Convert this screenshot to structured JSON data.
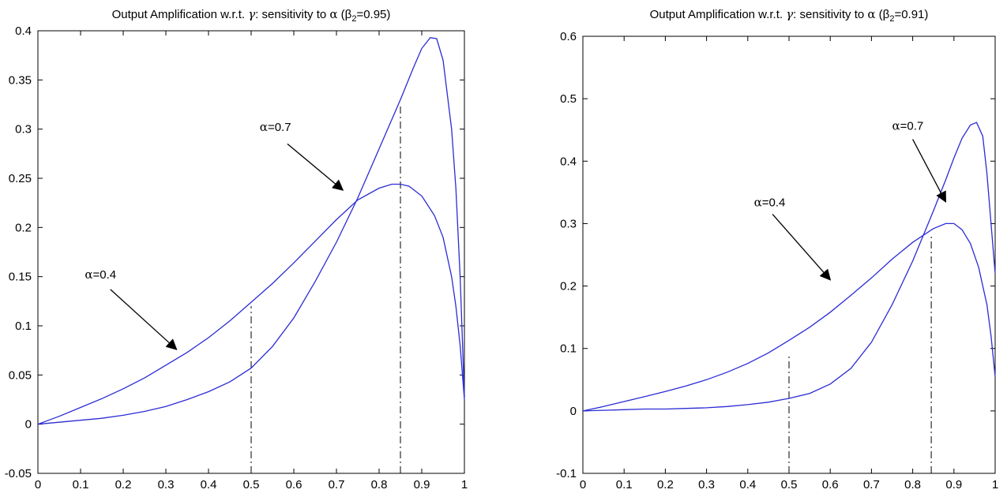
{
  "chart_data": [
    {
      "type": "line",
      "title": {
        "prefix": "Output Amplification w.r.t. ",
        "gamma": "γ",
        "mid": ": sensitivity to ",
        "alpha": "α",
        "beta_open": " (β",
        "beta_sub": "2",
        "beta_close": "=0.95)"
      },
      "xlabel": "",
      "ylabel": "",
      "xlim": [
        0,
        1
      ],
      "ylim": [
        -0.05,
        0.4
      ],
      "x_ticks": [
        "0",
        "0.1",
        "0.2",
        "0.3",
        "0.4",
        "0.5",
        "0.6",
        "0.7",
        "0.8",
        "0.9",
        "1"
      ],
      "y_ticks": [
        "-0.05",
        "0",
        "0.05",
        "0.1",
        "0.15",
        "0.2",
        "0.25",
        "0.3",
        "0.35",
        "0.4"
      ],
      "grid": false,
      "line_color": "#2b2bd6",
      "series": [
        {
          "name": "α=0.4",
          "x": [
            0,
            0.05,
            0.1,
            0.15,
            0.2,
            0.25,
            0.3,
            0.35,
            0.4,
            0.45,
            0.5,
            0.55,
            0.6,
            0.65,
            0.7,
            0.75,
            0.8,
            0.83,
            0.85,
            0.87,
            0.9,
            0.93,
            0.95,
            0.97,
            0.98,
            0.99,
            1.0
          ],
          "y": [
            0,
            0.008,
            0.017,
            0.026,
            0.036,
            0.047,
            0.06,
            0.073,
            0.088,
            0.105,
            0.124,
            0.143,
            0.164,
            0.186,
            0.208,
            0.228,
            0.24,
            0.244,
            0.244,
            0.242,
            0.232,
            0.212,
            0.19,
            0.15,
            0.12,
            0.08,
            0.025
          ]
        },
        {
          "name": "α=0.7",
          "x": [
            0,
            0.05,
            0.1,
            0.15,
            0.2,
            0.25,
            0.3,
            0.35,
            0.4,
            0.45,
            0.5,
            0.55,
            0.6,
            0.65,
            0.7,
            0.75,
            0.8,
            0.85,
            0.88,
            0.9,
            0.92,
            0.935,
            0.95,
            0.97,
            0.98,
            0.99,
            1.0
          ],
          "y": [
            0,
            0.002,
            0.004,
            0.006,
            0.009,
            0.013,
            0.018,
            0.025,
            0.033,
            0.043,
            0.057,
            0.079,
            0.108,
            0.145,
            0.185,
            0.23,
            0.28,
            0.33,
            0.362,
            0.382,
            0.393,
            0.392,
            0.37,
            0.3,
            0.24,
            0.15,
            0.028
          ]
        }
      ],
      "vlines": [
        {
          "x": 0.5,
          "y_top": 0.12
        },
        {
          "x": 0.85,
          "y_top": 0.325
        }
      ],
      "annotations": [
        {
          "label_alpha": "α",
          "label_value": "=0.7",
          "text_x": 0.52,
          "text_y": 0.298,
          "arrow_from": [
            0.585,
            0.285
          ],
          "arrow_to": [
            0.715,
            0.238
          ]
        },
        {
          "label_alpha": "α",
          "label_value": "=0.4",
          "text_x": 0.11,
          "text_y": 0.148,
          "arrow_from": [
            0.17,
            0.137
          ],
          "arrow_to": [
            0.325,
            0.076
          ]
        }
      ]
    },
    {
      "type": "line",
      "title": {
        "prefix": "Output Amplification w.r.t. ",
        "gamma": "γ",
        "mid": ": sensitivity to ",
        "alpha": "α",
        "beta_open": " (β",
        "beta_sub": "2",
        "beta_close": "=0.91)"
      },
      "xlabel": "",
      "ylabel": "",
      "xlim": [
        0,
        1
      ],
      "ylim": [
        -0.1,
        0.6
      ],
      "x_ticks": [
        "0",
        "0.1",
        "0.2",
        "0.3",
        "0.4",
        "0.5",
        "0.6",
        "0.7",
        "0.8",
        "0.9",
        "1"
      ],
      "y_ticks": [
        "-0.1",
        "0",
        "0.1",
        "0.2",
        "0.3",
        "0.4",
        "0.5",
        "0.6"
      ],
      "grid": false,
      "line_color": "#2b2bd6",
      "series": [
        {
          "name": "α=0.4",
          "x": [
            0,
            0.05,
            0.1,
            0.15,
            0.2,
            0.25,
            0.3,
            0.35,
            0.4,
            0.45,
            0.5,
            0.55,
            0.6,
            0.65,
            0.7,
            0.75,
            0.8,
            0.85,
            0.88,
            0.9,
            0.92,
            0.94,
            0.96,
            0.98,
            0.99,
            1.0
          ],
          "y": [
            0,
            0.007,
            0.015,
            0.023,
            0.031,
            0.04,
            0.05,
            0.062,
            0.076,
            0.093,
            0.113,
            0.134,
            0.158,
            0.185,
            0.213,
            0.243,
            0.27,
            0.292,
            0.3,
            0.3,
            0.29,
            0.268,
            0.23,
            0.17,
            0.12,
            0.055
          ]
        },
        {
          "name": "α=0.7",
          "x": [
            0,
            0.05,
            0.1,
            0.15,
            0.2,
            0.25,
            0.3,
            0.35,
            0.4,
            0.45,
            0.5,
            0.55,
            0.6,
            0.65,
            0.7,
            0.75,
            0.8,
            0.85,
            0.88,
            0.9,
            0.92,
            0.94,
            0.955,
            0.97,
            0.98,
            0.99,
            1.0
          ],
          "y": [
            0,
            0.001,
            0.002,
            0.003,
            0.003,
            0.004,
            0.005,
            0.007,
            0.01,
            0.014,
            0.02,
            0.028,
            0.043,
            0.068,
            0.11,
            0.17,
            0.24,
            0.32,
            0.37,
            0.405,
            0.437,
            0.458,
            0.462,
            0.44,
            0.38,
            0.3,
            0.22
          ]
        }
      ],
      "vlines": [
        {
          "x": 0.5,
          "y_top": 0.092
        },
        {
          "x": 0.845,
          "y_top": 0.28
        }
      ],
      "annotations": [
        {
          "label_alpha": "α",
          "label_value": "=0.7",
          "text_x": 0.75,
          "text_y": 0.45,
          "arrow_from": [
            0.8,
            0.435
          ],
          "arrow_to": [
            0.88,
            0.335
          ]
        },
        {
          "label_alpha": "α",
          "label_value": "=0.4",
          "text_x": 0.415,
          "text_y": 0.328,
          "arrow_from": [
            0.46,
            0.315
          ],
          "arrow_to": [
            0.6,
            0.21
          ]
        }
      ]
    }
  ]
}
